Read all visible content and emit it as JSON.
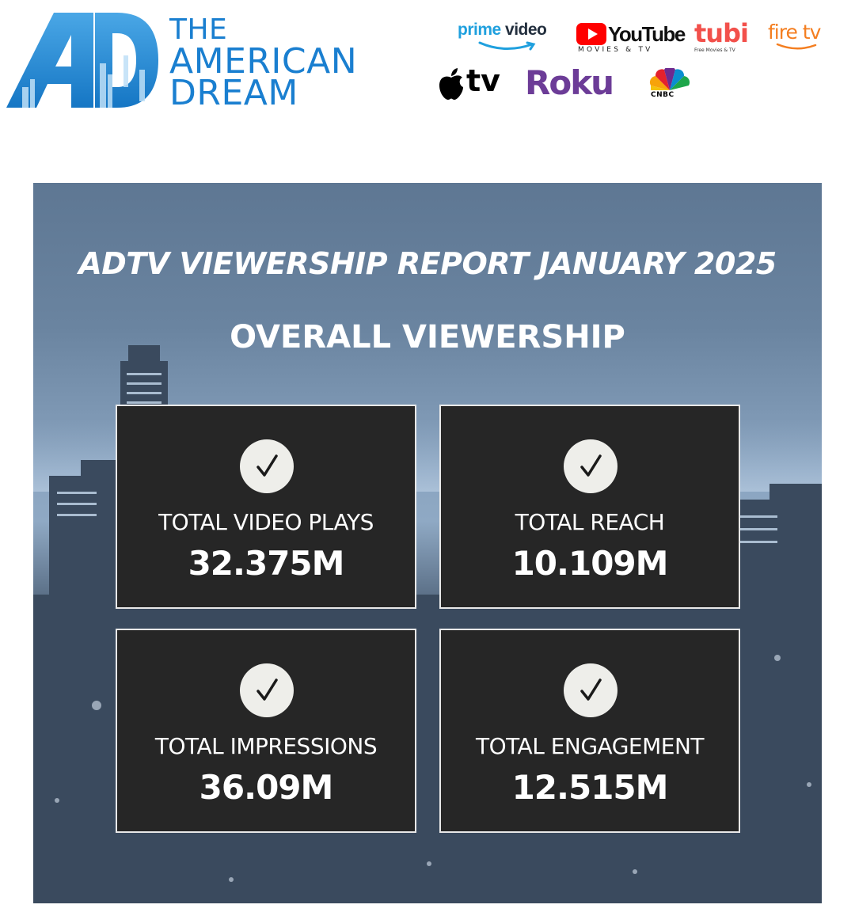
{
  "brand": {
    "line1": "THE",
    "line2": "AMERICAN",
    "line3": "DREAM",
    "monogram": "AD",
    "color": "#1a7fd0"
  },
  "partners": {
    "prime": {
      "word1": "prime",
      "word2": "video",
      "color": "#1fa0de"
    },
    "youtube": {
      "name": "YouTube",
      "sub": "MOVIES & TV",
      "color": "#ff0000"
    },
    "tubi": {
      "name": "tubi",
      "sub": "Free Movies & TV",
      "color": "#f2504b"
    },
    "firetv": {
      "name": "fire tv",
      "color": "#f47e20"
    },
    "appletv": {
      "name": "tv"
    },
    "roku": {
      "name": "Roku",
      "color": "#6c3c97"
    },
    "cnbc": {
      "name": "CNBC"
    }
  },
  "report": {
    "title": "ADTV VIEWERSHIP REPORT JANUARY 2025",
    "subtitle": "OVERALL VIEWERSHIP",
    "check_icon": "check-icon",
    "stats": [
      {
        "label": "TOTAL VIDEO PLAYS",
        "value": "32.375M"
      },
      {
        "label": "TOTAL REACH",
        "value": "10.109M"
      },
      {
        "label": "TOTAL IMPRESSIONS",
        "value": "36.09M"
      },
      {
        "label": "TOTAL ENGAGEMENT",
        "value": "12.515M"
      }
    ]
  }
}
